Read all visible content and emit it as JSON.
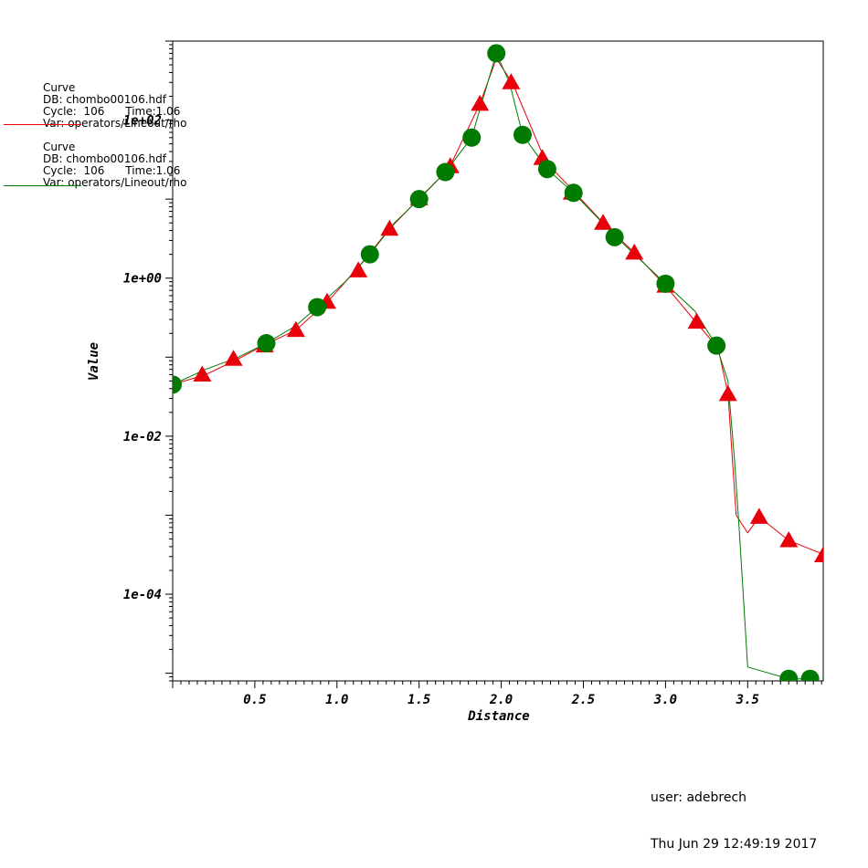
{
  "legend": [
    {
      "title": "Curve",
      "db": "DB: chombo00106.hdf",
      "cycle": "Cycle:  106      Time:1.06",
      "var": "Var: operators/Lineout/rho",
      "color": "#e8000b"
    },
    {
      "title": "Curve",
      "db": "DB: chombo00106.hdf",
      "cycle": "Cycle:  106      Time:1.06",
      "var": "Var: operators/Lineout/rho",
      "color": "#007a00"
    }
  ],
  "user": {
    "name": "user: adebrech",
    "timestamp": "Thu Jun 29 12:49:19 2017"
  },
  "chart_data": {
    "type": "line",
    "xlabel": "Distance",
    "ylabel": "Value",
    "xlim": [
      0,
      3.96
    ],
    "ylim": [
      8e-06,
      1000
    ],
    "yscale": "log",
    "grid": false,
    "xticks": [
      {
        "value": 0.5,
        "label": "0.5"
      },
      {
        "value": 1.0,
        "label": "1.0"
      },
      {
        "value": 1.5,
        "label": "1.5"
      },
      {
        "value": 2.0,
        "label": "2.0"
      },
      {
        "value": 2.5,
        "label": "2.5"
      },
      {
        "value": 3.0,
        "label": "3.0"
      },
      {
        "value": 3.5,
        "label": "3.5"
      }
    ],
    "yticks": [
      {
        "value": 100,
        "label": "1e+02"
      },
      {
        "value": 1,
        "label": "1e+00"
      },
      {
        "value": 0.01,
        "label": "1e-02"
      },
      {
        "value": 0.0001,
        "label": "1e-04"
      }
    ],
    "series": [
      {
        "color": "#e8000b",
        "marker": "triangle",
        "x": [
          0.0,
          0.2,
          0.4,
          0.55,
          0.75,
          0.95,
          1.12,
          1.32,
          1.5,
          1.68,
          1.87,
          1.97,
          2.07,
          2.27,
          2.45,
          2.62,
          2.8,
          3.0,
          3.19,
          3.32,
          3.38,
          3.43,
          3.5,
          3.57,
          3.75,
          3.96
        ],
        "y": [
          0.045,
          0.06,
          0.095,
          0.14,
          0.22,
          0.52,
          1.3,
          4.2,
          10.2,
          24,
          160,
          600,
          290,
          30,
          12,
          5,
          2.2,
          0.8,
          0.27,
          0.13,
          0.035,
          0.001,
          0.0006,
          0.00095,
          0.00048,
          0.00032
        ],
        "marker_x": [
          0.18,
          0.37,
          0.56,
          0.75,
          0.94,
          1.13,
          1.32,
          1.5,
          1.69,
          1.87,
          2.06,
          2.25,
          2.43,
          2.62,
          2.81,
          3.0,
          3.19,
          3.38,
          3.57,
          3.75,
          3.96
        ],
        "marker_y": [
          0.06,
          0.095,
          0.14,
          0.22,
          0.5,
          1.25,
          4.2,
          10.2,
          26,
          160,
          300,
          33,
          12,
          5,
          2.1,
          0.8,
          0.28,
          0.034,
          0.00095,
          0.00048,
          0.00031
        ]
      },
      {
        "color": "#007a00",
        "marker": "circle",
        "x": [
          0.0,
          0.2,
          0.4,
          0.57,
          0.75,
          0.88,
          1.05,
          1.2,
          1.35,
          1.5,
          1.66,
          1.82,
          1.97,
          2.05,
          2.13,
          2.28,
          2.44,
          2.7,
          3.0,
          3.18,
          3.31,
          3.38,
          3.42,
          3.45,
          3.5,
          3.75,
          3.88
        ],
        "y": [
          0.045,
          0.07,
          0.1,
          0.15,
          0.25,
          0.43,
          0.9,
          2.0,
          5,
          10,
          22,
          60,
          700,
          300,
          65,
          24,
          12,
          3.3,
          0.85,
          0.38,
          0.14,
          0.05,
          0.005,
          0.0006,
          1.2e-05,
          8.5e-06,
          8.5e-06
        ],
        "marker_x": [
          0.0,
          0.57,
          0.88,
          1.2,
          1.5,
          1.66,
          1.82,
          1.97,
          2.13,
          2.28,
          2.44,
          2.69,
          3.0,
          3.31,
          3.75,
          3.88
        ],
        "marker_y": [
          0.045,
          0.15,
          0.43,
          2.0,
          10,
          22,
          60,
          700,
          65,
          24,
          12,
          3.3,
          0.85,
          0.14,
          8.5e-06,
          8.5e-06
        ]
      }
    ]
  }
}
